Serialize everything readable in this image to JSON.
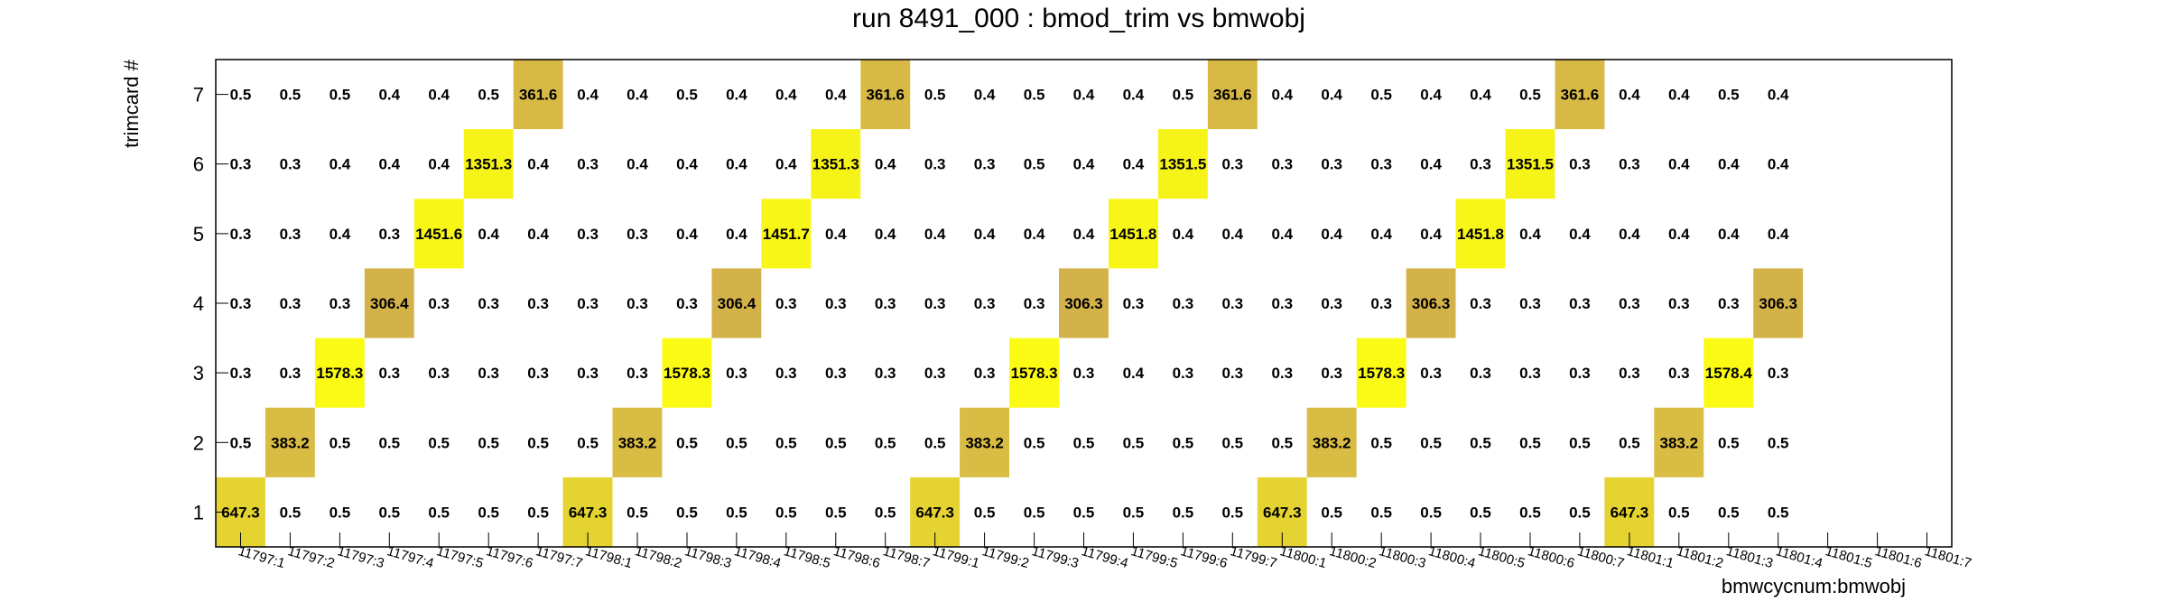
{
  "chart_data": {
    "type": "heatmap",
    "title": "run 8491_000 : bmod_trim vs bmwobj",
    "xlabel": "bmwcycnum:bmwobj",
    "ylabel": "trimcard #",
    "x_categories": [
      "11797:1",
      "11797:2",
      "11797:3",
      "11797:4",
      "11797:5",
      "11797:6",
      "11797:7",
      "11798:1",
      "11798:2",
      "11798:3",
      "11798:4",
      "11798:5",
      "11798:6",
      "11798:7",
      "11799:1",
      "11799:2",
      "11799:3",
      "11799:4",
      "11799:5",
      "11799:6",
      "11799:7",
      "11800:1",
      "11800:2",
      "11800:3",
      "11800:4",
      "11800:5",
      "11800:6",
      "11800:7",
      "11801:1",
      "11801:2",
      "11801:3",
      "11801:4",
      "11801:5",
      "11801:6",
      "11801:7"
    ],
    "y_categories": [
      "1",
      "2",
      "3",
      "4",
      "5",
      "6",
      "7"
    ],
    "grid": false,
    "values": [
      [
        "647.3",
        "0.5",
        "0.5",
        "0.5",
        "0.5",
        "0.5",
        "0.5",
        "647.3",
        "0.5",
        "0.5",
        "0.5",
        "0.5",
        "0.5",
        "0.5",
        "647.3",
        "0.5",
        "0.5",
        "0.5",
        "0.5",
        "0.5",
        "0.5",
        "647.3",
        "0.5",
        "0.5",
        "0.5",
        "0.5",
        "0.5",
        "0.5",
        "647.3",
        "0.5",
        "0.5",
        "0.5",
        null,
        null,
        null
      ],
      [
        "0.5",
        "383.2",
        "0.5",
        "0.5",
        "0.5",
        "0.5",
        "0.5",
        "0.5",
        "383.2",
        "0.5",
        "0.5",
        "0.5",
        "0.5",
        "0.5",
        "0.5",
        "383.2",
        "0.5",
        "0.5",
        "0.5",
        "0.5",
        "0.5",
        "0.5",
        "383.2",
        "0.5",
        "0.5",
        "0.5",
        "0.5",
        "0.5",
        "0.5",
        "383.2",
        "0.5",
        "0.5",
        null,
        null,
        null
      ],
      [
        "0.3",
        "0.3",
        "1578.3",
        "0.3",
        "0.3",
        "0.3",
        "0.3",
        "0.3",
        "0.3",
        "1578.3",
        "0.3",
        "0.3",
        "0.3",
        "0.3",
        "0.3",
        "0.3",
        "1578.3",
        "0.3",
        "0.4",
        "0.3",
        "0.3",
        "0.3",
        "0.3",
        "1578.3",
        "0.3",
        "0.3",
        "0.3",
        "0.3",
        "0.3",
        "0.3",
        "1578.4",
        "0.3",
        null,
        null,
        null
      ],
      [
        "0.3",
        "0.3",
        "0.3",
        "306.4",
        "0.3",
        "0.3",
        "0.3",
        "0.3",
        "0.3",
        "0.3",
        "306.4",
        "0.3",
        "0.3",
        "0.3",
        "0.3",
        "0.3",
        "0.3",
        "306.3",
        "0.3",
        "0.3",
        "0.3",
        "0.3",
        "0.3",
        "0.3",
        "306.3",
        "0.3",
        "0.3",
        "0.3",
        "0.3",
        "0.3",
        "0.3",
        "306.3",
        null,
        null,
        null
      ],
      [
        "0.3",
        "0.3",
        "0.4",
        "0.3",
        "1451.6",
        "0.4",
        "0.4",
        "0.3",
        "0.3",
        "0.4",
        "0.4",
        "1451.7",
        "0.4",
        "0.4",
        "0.4",
        "0.4",
        "0.4",
        "0.4",
        "1451.8",
        "0.4",
        "0.4",
        "0.4",
        "0.4",
        "0.4",
        "0.4",
        "1451.8",
        "0.4",
        "0.4",
        "0.4",
        "0.4",
        "0.4",
        "0.4",
        null,
        null,
        null
      ],
      [
        "0.3",
        "0.3",
        "0.4",
        "0.4",
        "0.4",
        "1351.3",
        "0.4",
        "0.3",
        "0.4",
        "0.4",
        "0.4",
        "0.4",
        "1351.3",
        "0.4",
        "0.3",
        "0.3",
        "0.5",
        "0.4",
        "0.4",
        "1351.5",
        "0.3",
        "0.3",
        "0.3",
        "0.3",
        "0.4",
        "0.3",
        "1351.5",
        "0.3",
        "0.3",
        "0.4",
        "0.4",
        "0.4",
        null,
        null,
        null
      ],
      [
        "0.5",
        "0.5",
        "0.5",
        "0.4",
        "0.4",
        "0.5",
        "361.6",
        "0.4",
        "0.4",
        "0.5",
        "0.4",
        "0.4",
        "0.4",
        "361.6",
        "0.5",
        "0.4",
        "0.5",
        "0.4",
        "0.4",
        "0.5",
        "361.6",
        "0.4",
        "0.4",
        "0.5",
        "0.4",
        "0.4",
        "0.5",
        "361.6",
        "0.4",
        "0.4",
        "0.5",
        "0.4",
        null,
        null,
        null
      ]
    ],
    "colors": {
      "low": "#d4b24a",
      "high": "#fafa14"
    }
  }
}
